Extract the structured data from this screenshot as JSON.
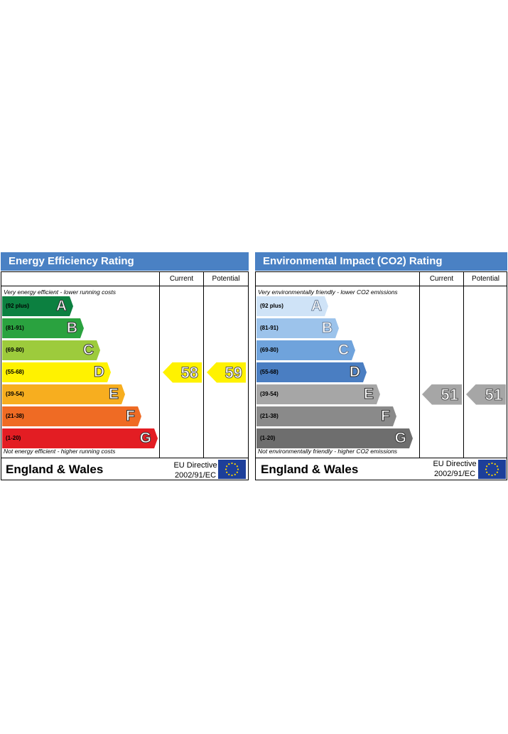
{
  "chart_data": [
    {
      "type": "bar",
      "title": "Energy Efficiency Rating",
      "columns": [
        "Current",
        "Potential"
      ],
      "top_note": "Very energy efficient - lower running costs",
      "bottom_note": "Not energy efficient - higher running costs",
      "bands": [
        {
          "letter": "A",
          "range": "(92 plus)",
          "color": "#0c8040"
        },
        {
          "letter": "B",
          "range": "(81-91)",
          "color": "#2aa23f"
        },
        {
          "letter": "C",
          "range": "(69-80)",
          "color": "#9dcb3c"
        },
        {
          "letter": "D",
          "range": "(55-68)",
          "color": "#fff200"
        },
        {
          "letter": "E",
          "range": "(39-54)",
          "color": "#f7ae1f"
        },
        {
          "letter": "F",
          "range": "(21-38)",
          "color": "#ef6b24"
        },
        {
          "letter": "G",
          "range": "(1-20)",
          "color": "#e31d23"
        }
      ],
      "current": {
        "value": "58",
        "band": "D",
        "color": "#fff200"
      },
      "potential": {
        "value": "59",
        "band": "D",
        "color": "#fff200"
      },
      "footer": {
        "country": "England & Wales",
        "directive_line1": "EU Directive",
        "directive_line2": "2002/91/EC"
      }
    },
    {
      "type": "bar",
      "title": "Environmental Impact (CO2) Rating",
      "columns": [
        "Current",
        "Potential"
      ],
      "top_note": "Very environmentally friendly - lower CO2 emissions",
      "bottom_note": "Not environmentally friendly - higher CO2 emissions",
      "bands": [
        {
          "letter": "A",
          "range": "(92 plus)",
          "color": "#cfe3f7"
        },
        {
          "letter": "B",
          "range": "(81-91)",
          "color": "#9cc3eb"
        },
        {
          "letter": "C",
          "range": "(69-80)",
          "color": "#6fa3dc"
        },
        {
          "letter": "D",
          "range": "(55-68)",
          "color": "#4a7ec2"
        },
        {
          "letter": "E",
          "range": "(39-54)",
          "color": "#a6a6a6"
        },
        {
          "letter": "F",
          "range": "(21-38)",
          "color": "#8a8a8a"
        },
        {
          "letter": "G",
          "range": "(1-20)",
          "color": "#6e6e6e"
        }
      ],
      "current": {
        "value": "51",
        "band": "E",
        "color": "#a6a6a6"
      },
      "potential": {
        "value": "51",
        "band": "E",
        "color": "#a6a6a6"
      },
      "footer": {
        "country": "England & Wales",
        "directive_line1": "EU Directive",
        "directive_line2": "2002/91/EC"
      }
    }
  ]
}
